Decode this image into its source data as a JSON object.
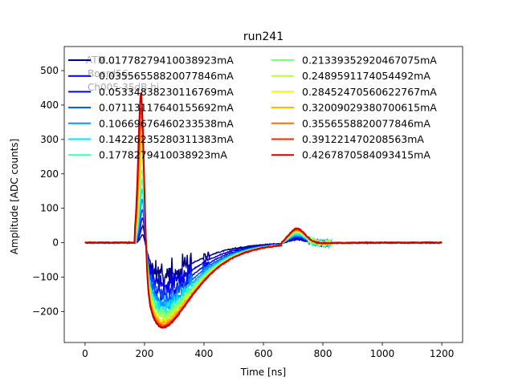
{
  "chart_data": {
    "type": "line",
    "title": "run241",
    "xlabel": "Time [ns]",
    "ylabel": "Amplitude [ADC counts]",
    "xlim": [
      -70,
      1270
    ],
    "ylim": [
      -290,
      570
    ],
    "xticks": [
      0,
      200,
      400,
      600,
      800,
      1000,
      1200
    ],
    "xtick_labels": [
      "0",
      "200",
      "400",
      "600",
      "800",
      "1000",
      "1200"
    ],
    "yticks": [
      -200,
      -100,
      0,
      100,
      200,
      300,
      400,
      500
    ],
    "ytick_labels": [
      "−200",
      "−100",
      "0",
      "100",
      "200",
      "300",
      "400",
      "500"
    ],
    "grid": false,
    "legend_position": "top",
    "legend_columns": 2,
    "background_annotation": [
      "ATM...",
      "Board56...",
      "Ch005-35dB hi"
    ],
    "series": [
      {
        "name": "0.01778279410038923mA",
        "color": "#00007f",
        "peak": 25,
        "trough": -90,
        "bump": 10
      },
      {
        "name": "0.03556558820077846mA",
        "color": "#0000d2",
        "peak": 50,
        "trough": -120,
        "bump": 14
      },
      {
        "name": "0.05334838230116769mA",
        "color": "#0004ff",
        "peak": 75,
        "trough": -145,
        "bump": 18
      },
      {
        "name": "0.07113117640155692mA",
        "color": "#0050ff",
        "peak": 100,
        "trough": -165,
        "bump": 21
      },
      {
        "name": "0.10669676460233538mA",
        "color": "#0098ff",
        "peak": 130,
        "trough": -180,
        "bump": 24
      },
      {
        "name": "0.14226235280311383mA",
        "color": "#00e4f8",
        "peak": 160,
        "trough": -192,
        "bump": 27
      },
      {
        "name": "0.1778279410038923mA",
        "color": "#3fffb7",
        "peak": 190,
        "trough": -202,
        "bump": 30
      },
      {
        "name": "0.21339352920467075mA",
        "color": "#7dff7a",
        "peak": 220,
        "trough": -210,
        "bump": 33
      },
      {
        "name": "0.2489591174054492mA",
        "color": "#b7ff3f",
        "peak": 250,
        "trough": -218,
        "bump": 35
      },
      {
        "name": "0.28452470560622767mA",
        "color": "#f8f500",
        "peak": 285,
        "trough": -225,
        "bump": 37
      },
      {
        "name": "0.32009029380700615mA",
        "color": "#ffb200",
        "peak": 320,
        "trough": -232,
        "bump": 39
      },
      {
        "name": "0.3556558820077846mA",
        "color": "#ff6c00",
        "peak": 360,
        "trough": -238,
        "bump": 41
      },
      {
        "name": "0.391221470208563mA",
        "color": "#ff2500",
        "peak": 400,
        "trough": -242,
        "bump": 43
      },
      {
        "name": "0.4267870584093415mA",
        "color": "#cc0000",
        "peak": 445,
        "trough": -247,
        "bump": 45
      }
    ]
  }
}
